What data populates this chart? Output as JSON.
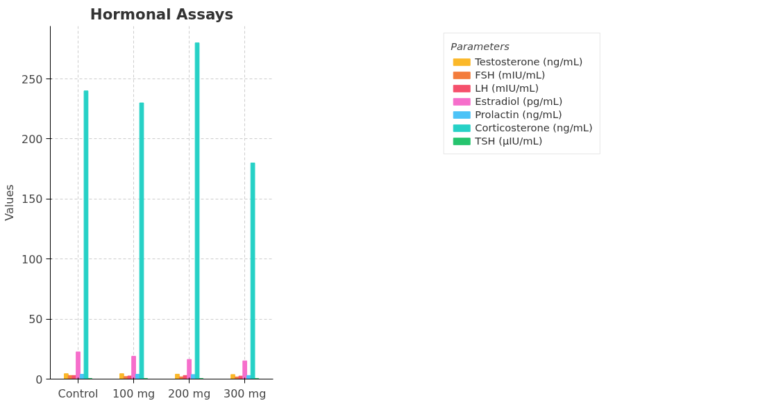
{
  "chart_data": {
    "type": "bar",
    "title": "Hormonal Assays",
    "ylabel": "Values",
    "legend_title": "Parameters",
    "categories": [
      "Control",
      "100 mg",
      "200 mg",
      "300 mg"
    ],
    "series": [
      {
        "name": "Testosterone (ng/mL)",
        "color": "#fbb829",
        "values": [
          4.5,
          4.5,
          4.1,
          3.8
        ]
      },
      {
        "name": "FSH (mIU/mL)",
        "color": "#f37c3c",
        "values": [
          3,
          2.1,
          1.9,
          1.8
        ]
      },
      {
        "name": "LH (mIU/mL)",
        "color": "#f5506c",
        "values": [
          3,
          2.6,
          3,
          2.5
        ]
      },
      {
        "name": "Estradiol (pg/mL)",
        "color": "#f66ecb",
        "values": [
          22.7,
          19,
          16.4,
          15.2
        ]
      },
      {
        "name": "Prolactin (ng/mL)",
        "color": "#4cc3f7",
        "values": [
          4,
          4,
          3.8,
          3
        ]
      },
      {
        "name": "Corticosterone (ng/mL)",
        "color": "#26d1c6",
        "values": [
          240,
          230,
          280,
          180
        ]
      },
      {
        "name": "TSH (µIU/mL)",
        "color": "#26c46e",
        "values": [
          0.5,
          0.5,
          0.5,
          0.5
        ]
      }
    ],
    "ylim": [
      0,
      294
    ],
    "yticks": [
      0,
      50,
      100,
      150,
      200,
      250
    ],
    "grid": true,
    "legend": "top right"
  }
}
